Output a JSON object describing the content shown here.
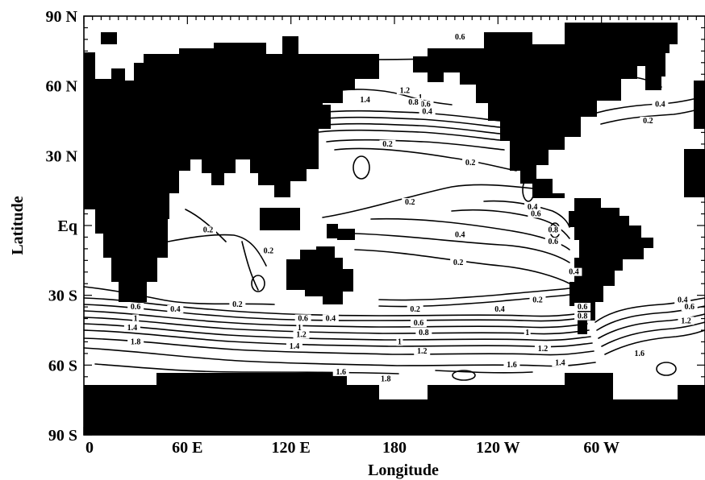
{
  "axes": {
    "xlabel": "Longitude",
    "ylabel": "Latitude",
    "x_ticks": [
      "0",
      "60 E",
      "120 E",
      "180",
      "120 W",
      "60 W"
    ],
    "y_ticks": [
      "90 N",
      "60 N",
      "30 N",
      "Eq",
      "30 S",
      "60 S",
      "90 S"
    ],
    "x_tick_values": [
      0,
      60,
      120,
      180,
      240,
      300
    ],
    "y_tick_values": [
      90,
      60,
      30,
      0,
      -30,
      -60,
      -90
    ],
    "x_range": [
      0,
      360
    ],
    "y_range": [
      -90,
      90
    ]
  },
  "colors": {
    "land": "#000000",
    "ocean": "#ffffff",
    "contour": "#000000"
  },
  "contour_labels": [
    {
      "text": "0.6",
      "lon": 218,
      "lat": 80
    },
    {
      "text": "1.2",
      "lon": 186,
      "lat": 57
    },
    {
      "text": "1.4",
      "lon": 163,
      "lat": 53
    },
    {
      "text": "1",
      "lon": 195,
      "lat": 54
    },
    {
      "text": "0.6",
      "lon": 198,
      "lat": 51
    },
    {
      "text": "0.8",
      "lon": 191,
      "lat": 52
    },
    {
      "text": "0.4",
      "lon": 199,
      "lat": 48
    },
    {
      "text": "0.2",
      "lon": 176,
      "lat": 34
    },
    {
      "text": "0.4",
      "lon": 334,
      "lat": 51
    },
    {
      "text": "0.2",
      "lon": 327,
      "lat": 44
    },
    {
      "text": "0.2",
      "lon": 224,
      "lat": 26
    },
    {
      "text": "0.2",
      "lon": 189,
      "lat": 9
    },
    {
      "text": "0.4",
      "lon": 260,
      "lat": 7
    },
    {
      "text": "0.6",
      "lon": 262,
      "lat": 4
    },
    {
      "text": "0.2",
      "lon": 72,
      "lat": -3
    },
    {
      "text": "0.8",
      "lon": 272,
      "lat": -3
    },
    {
      "text": "0.4",
      "lon": 218,
      "lat": -5
    },
    {
      "text": "0.6",
      "lon": 272,
      "lat": -8
    },
    {
      "text": "0.2",
      "lon": 107,
      "lat": -12
    },
    {
      "text": "0.2",
      "lon": 217,
      "lat": -17
    },
    {
      "text": "0.4",
      "lon": 284,
      "lat": -21
    },
    {
      "text": "0.2",
      "lon": 89,
      "lat": -35
    },
    {
      "text": "0.2",
      "lon": 263,
      "lat": -33
    },
    {
      "text": "0.2",
      "lon": 192,
      "lat": -37
    },
    {
      "text": "0.4",
      "lon": 241,
      "lat": -37
    },
    {
      "text": "0.6",
      "lon": 289,
      "lat": -36
    },
    {
      "text": "0.8",
      "lon": 289,
      "lat": -40
    },
    {
      "text": "0.4",
      "lon": 347,
      "lat": -33
    },
    {
      "text": "0.6",
      "lon": 351,
      "lat": -36
    },
    {
      "text": "1.2",
      "lon": 349,
      "lat": -42
    },
    {
      "text": "0.6",
      "lon": 30,
      "lat": -36
    },
    {
      "text": "0.4",
      "lon": 53,
      "lat": -37
    },
    {
      "text": "1",
      "lon": 30,
      "lat": -41
    },
    {
      "text": "1.4",
      "lon": 28,
      "lat": -45
    },
    {
      "text": "1.8",
      "lon": 30,
      "lat": -51
    },
    {
      "text": "0.4",
      "lon": 143,
      "lat": -41
    },
    {
      "text": "0.6",
      "lon": 127,
      "lat": -41
    },
    {
      "text": "0.6",
      "lon": 194,
      "lat": -43
    },
    {
      "text": "0.8",
      "lon": 197,
      "lat": -47
    },
    {
      "text": "1",
      "lon": 125,
      "lat": -45
    },
    {
      "text": "1.2",
      "lon": 126,
      "lat": -48
    },
    {
      "text": "1.4",
      "lon": 122,
      "lat": -53
    },
    {
      "text": "1",
      "lon": 183,
      "lat": -51
    },
    {
      "text": "1",
      "lon": 257,
      "lat": -47
    },
    {
      "text": "1.2",
      "lon": 196,
      "lat": -55
    },
    {
      "text": "1.2",
      "lon": 266,
      "lat": -54
    },
    {
      "text": "1.4",
      "lon": 276,
      "lat": -60
    },
    {
      "text": "1.6",
      "lon": 248,
      "lat": -61
    },
    {
      "text": "1.6",
      "lon": 322,
      "lat": -56
    },
    {
      "text": "1.6",
      "lon": 149,
      "lat": -64
    },
    {
      "text": "1.8",
      "lon": 175,
      "lat": -67
    }
  ]
}
